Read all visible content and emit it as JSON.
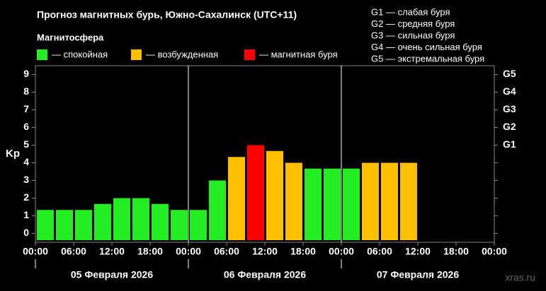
{
  "chart_data": {
    "type": "bar",
    "title": "Прогноз магнитных бурь, Южно-Сахалинск (UTC+11)",
    "subtitle": "Магнитосфера",
    "ylabel": "Kp",
    "watermark": "xras.ru",
    "legend": [
      {
        "name": "— спокойная",
        "color": "#22ee22"
      },
      {
        "name": "— возбужденная",
        "color": "#ffc000"
      },
      {
        "name": "— магнитная буря",
        "color": "#ff0000"
      }
    ],
    "storm_levels": [
      "G1 — слабая буря",
      "G2 — средняя буря",
      "G3 — сильная буря",
      "G4 — очень сильная буря",
      "G5 — экстремальная буря"
    ],
    "x": [
      0,
      3,
      6,
      9,
      12,
      15,
      18,
      21,
      24,
      27,
      30,
      33,
      36,
      39,
      42,
      45,
      48,
      51,
      54,
      57
    ],
    "values": [
      1.33,
      1.33,
      1.33,
      1.67,
      2,
      2,
      1.67,
      1.33,
      1.33,
      3,
      4.33,
      5,
      4.67,
      4,
      3.67,
      3.67,
      3.67,
      4,
      4,
      4
    ],
    "colors": [
      "#22ee22",
      "#22ee22",
      "#22ee22",
      "#22ee22",
      "#22ee22",
      "#22ee22",
      "#22ee22",
      "#22ee22",
      "#22ee22",
      "#22ee22",
      "#ffc000",
      "#ff0000",
      "#ffc000",
      "#ffc000",
      "#22ee22",
      "#22ee22",
      "#22ee22",
      "#ffc000",
      "#ffc000",
      "#ffc000"
    ],
    "bar_width": 3,
    "xlim": [
      0,
      72
    ],
    "xticks": [
      {
        "value": 0,
        "label": "00:00"
      },
      {
        "value": 6,
        "label": "06:00"
      },
      {
        "value": 12,
        "label": "12:00"
      },
      {
        "value": 18,
        "label": "18:00"
      },
      {
        "value": 24,
        "label": "00:00"
      },
      {
        "value": 30,
        "label": "06:00"
      },
      {
        "value": 36,
        "label": "12:00"
      },
      {
        "value": 42,
        "label": "18:00"
      },
      {
        "value": 48,
        "label": "00:00"
      },
      {
        "value": 54,
        "label": "06:00"
      },
      {
        "value": 60,
        "label": "12:00"
      },
      {
        "value": 66,
        "label": "18:00"
      },
      {
        "value": 72,
        "label": "00:00"
      }
    ],
    "day_lines": [
      24,
      48
    ],
    "days": [
      "05 Февраля 2026",
      "06 Февраля 2026",
      "07 Февраля 2026"
    ],
    "ylim": [
      -0.5,
      9.5
    ],
    "yticks": [
      0,
      1,
      2,
      3,
      4,
      5,
      6,
      7,
      8,
      9
    ],
    "y2ticks": [
      {
        "value": 5,
        "label": "G1"
      },
      {
        "value": 6,
        "label": "G2"
      },
      {
        "value": 7,
        "label": "G3"
      },
      {
        "value": 8,
        "label": "G4"
      },
      {
        "value": 9,
        "label": "G5"
      }
    ]
  }
}
